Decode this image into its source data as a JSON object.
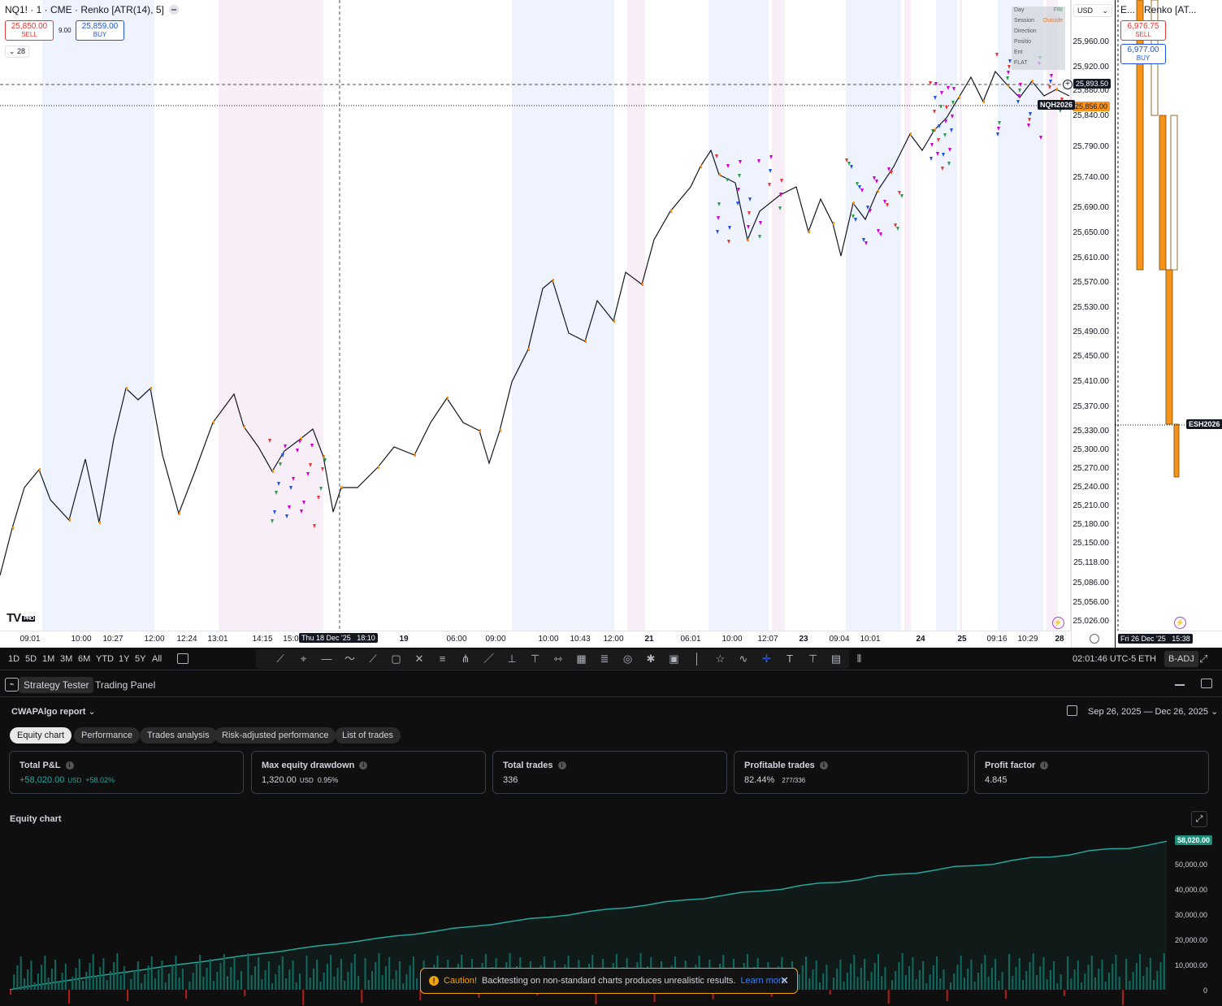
{
  "chart": {
    "symbol": "NQ1! · 1 · CME · Renko [ATR(14), 5]",
    "sell_price": "25,850.00",
    "sell_label": "SELL",
    "spread": "9.00",
    "buy_price": "25,859.00",
    "buy_label": "BUY",
    "count": "28",
    "currency": "USD",
    "tf_label": "1",
    "logo": "TV",
    "logo_pro": "PRO",
    "price_labels": [
      "25,960.00",
      "25,920.00",
      "25,880.00",
      "25,840.00",
      "25,790.00",
      "25,740.00",
      "25,690.00",
      "25,650.00",
      "25,610.00",
      "25,570.00",
      "25,530.00",
      "25,490.00",
      "25,450.00",
      "25,410.00",
      "25,370.00",
      "25,330.00",
      "25,300.00",
      "25,270.00",
      "25,240.00",
      "25,210.00",
      "25,180.00",
      "25,150.00",
      "25,118.00",
      "25,086.00",
      "25,056.00",
      "25,026.00"
    ],
    "crosshair_price": "25,893.50",
    "last_price": "25,856.00",
    "contract": "NQH2026",
    "time_labels": [
      "09:01",
      "10:00",
      "10:27",
      "12:00",
      "12:24",
      "13:01",
      "14:15",
      "15:0",
      "19",
      "06:00",
      "09:00",
      "10:00",
      "10:43",
      "12:00",
      "21",
      "06:01",
      "10:00",
      "12:07",
      "23",
      "09:04",
      "10:01",
      "24",
      "25",
      "09:16",
      "10:29",
      "28"
    ],
    "crosshair_time": "Thu 18 Dec '25",
    "crosshair_time2": "18:10",
    "legend_table": {
      "rows": [
        [
          "Day",
          "FRI"
        ],
        [
          "Session",
          "Outside"
        ],
        [
          "Direction",
          ""
        ],
        [
          "Positio",
          ""
        ],
        [
          "Ent",
          ""
        ],
        [
          "FLAT",
          ""
        ]
      ]
    }
  },
  "side_chart": {
    "symbol": "E...",
    "title": "Renko [AT...",
    "sell_price": "6,976.75",
    "sell_label": "SELL",
    "buy_price": "6,977.00",
    "buy_label": "BUY",
    "contract": "ESH2026",
    "time": "Fri 26 Dec '25",
    "time2": "15:38"
  },
  "toolbar": {
    "ranges": [
      "1D",
      "5D",
      "1M",
      "3M",
      "6M",
      "YTD",
      "1Y",
      "5Y",
      "All"
    ],
    "clock": "02:01:46 UTC-5",
    "session": "ETH",
    "adj": "B-ADJ"
  },
  "tabs": {
    "tester": "Strategy Tester",
    "trading": "Trading Panel"
  },
  "report": {
    "title": "CWAPAlgo report",
    "date_range": "Sep 26, 2025 — Dec 26, 2025",
    "subtabs": [
      "Equity chart",
      "Performance",
      "Trades analysis",
      "Risk-adjusted performance",
      "List of trades"
    ],
    "cards": [
      {
        "title": "Total P&L",
        "value": "+58,020.00",
        "unit": "USD",
        "extra": "+58.02%"
      },
      {
        "title": "Max equity drawdown",
        "value": "1,320.00",
        "unit": "USD",
        "extra": "0.95%"
      },
      {
        "title": "Total trades",
        "value": "336",
        "unit": "",
        "extra": ""
      },
      {
        "title": "Profitable trades",
        "value": "82.44%",
        "unit": "",
        "extra": "277/336"
      },
      {
        "title": "Profit factor",
        "value": "4.845",
        "unit": "",
        "extra": ""
      }
    ],
    "equity_title": "Equity chart",
    "equity_last": "58,020.00",
    "equity_y": [
      "50,000.00",
      "40,000.00",
      "30,000.00",
      "20,000.00",
      "10,000.00",
      "0"
    ],
    "caution_bold": "Caution!",
    "caution_text": "Backtesting on non-standard charts produces unrealistic results.",
    "caution_link": "Learn more"
  },
  "colors": {
    "sell": "#e53935",
    "buy": "#1e53e5",
    "equity": "#26a69a",
    "loss": "#b71c1c",
    "session_blue": "#eef3fd",
    "session_pink": "#f8eef7",
    "renko_orange": "#f7931a"
  }
}
